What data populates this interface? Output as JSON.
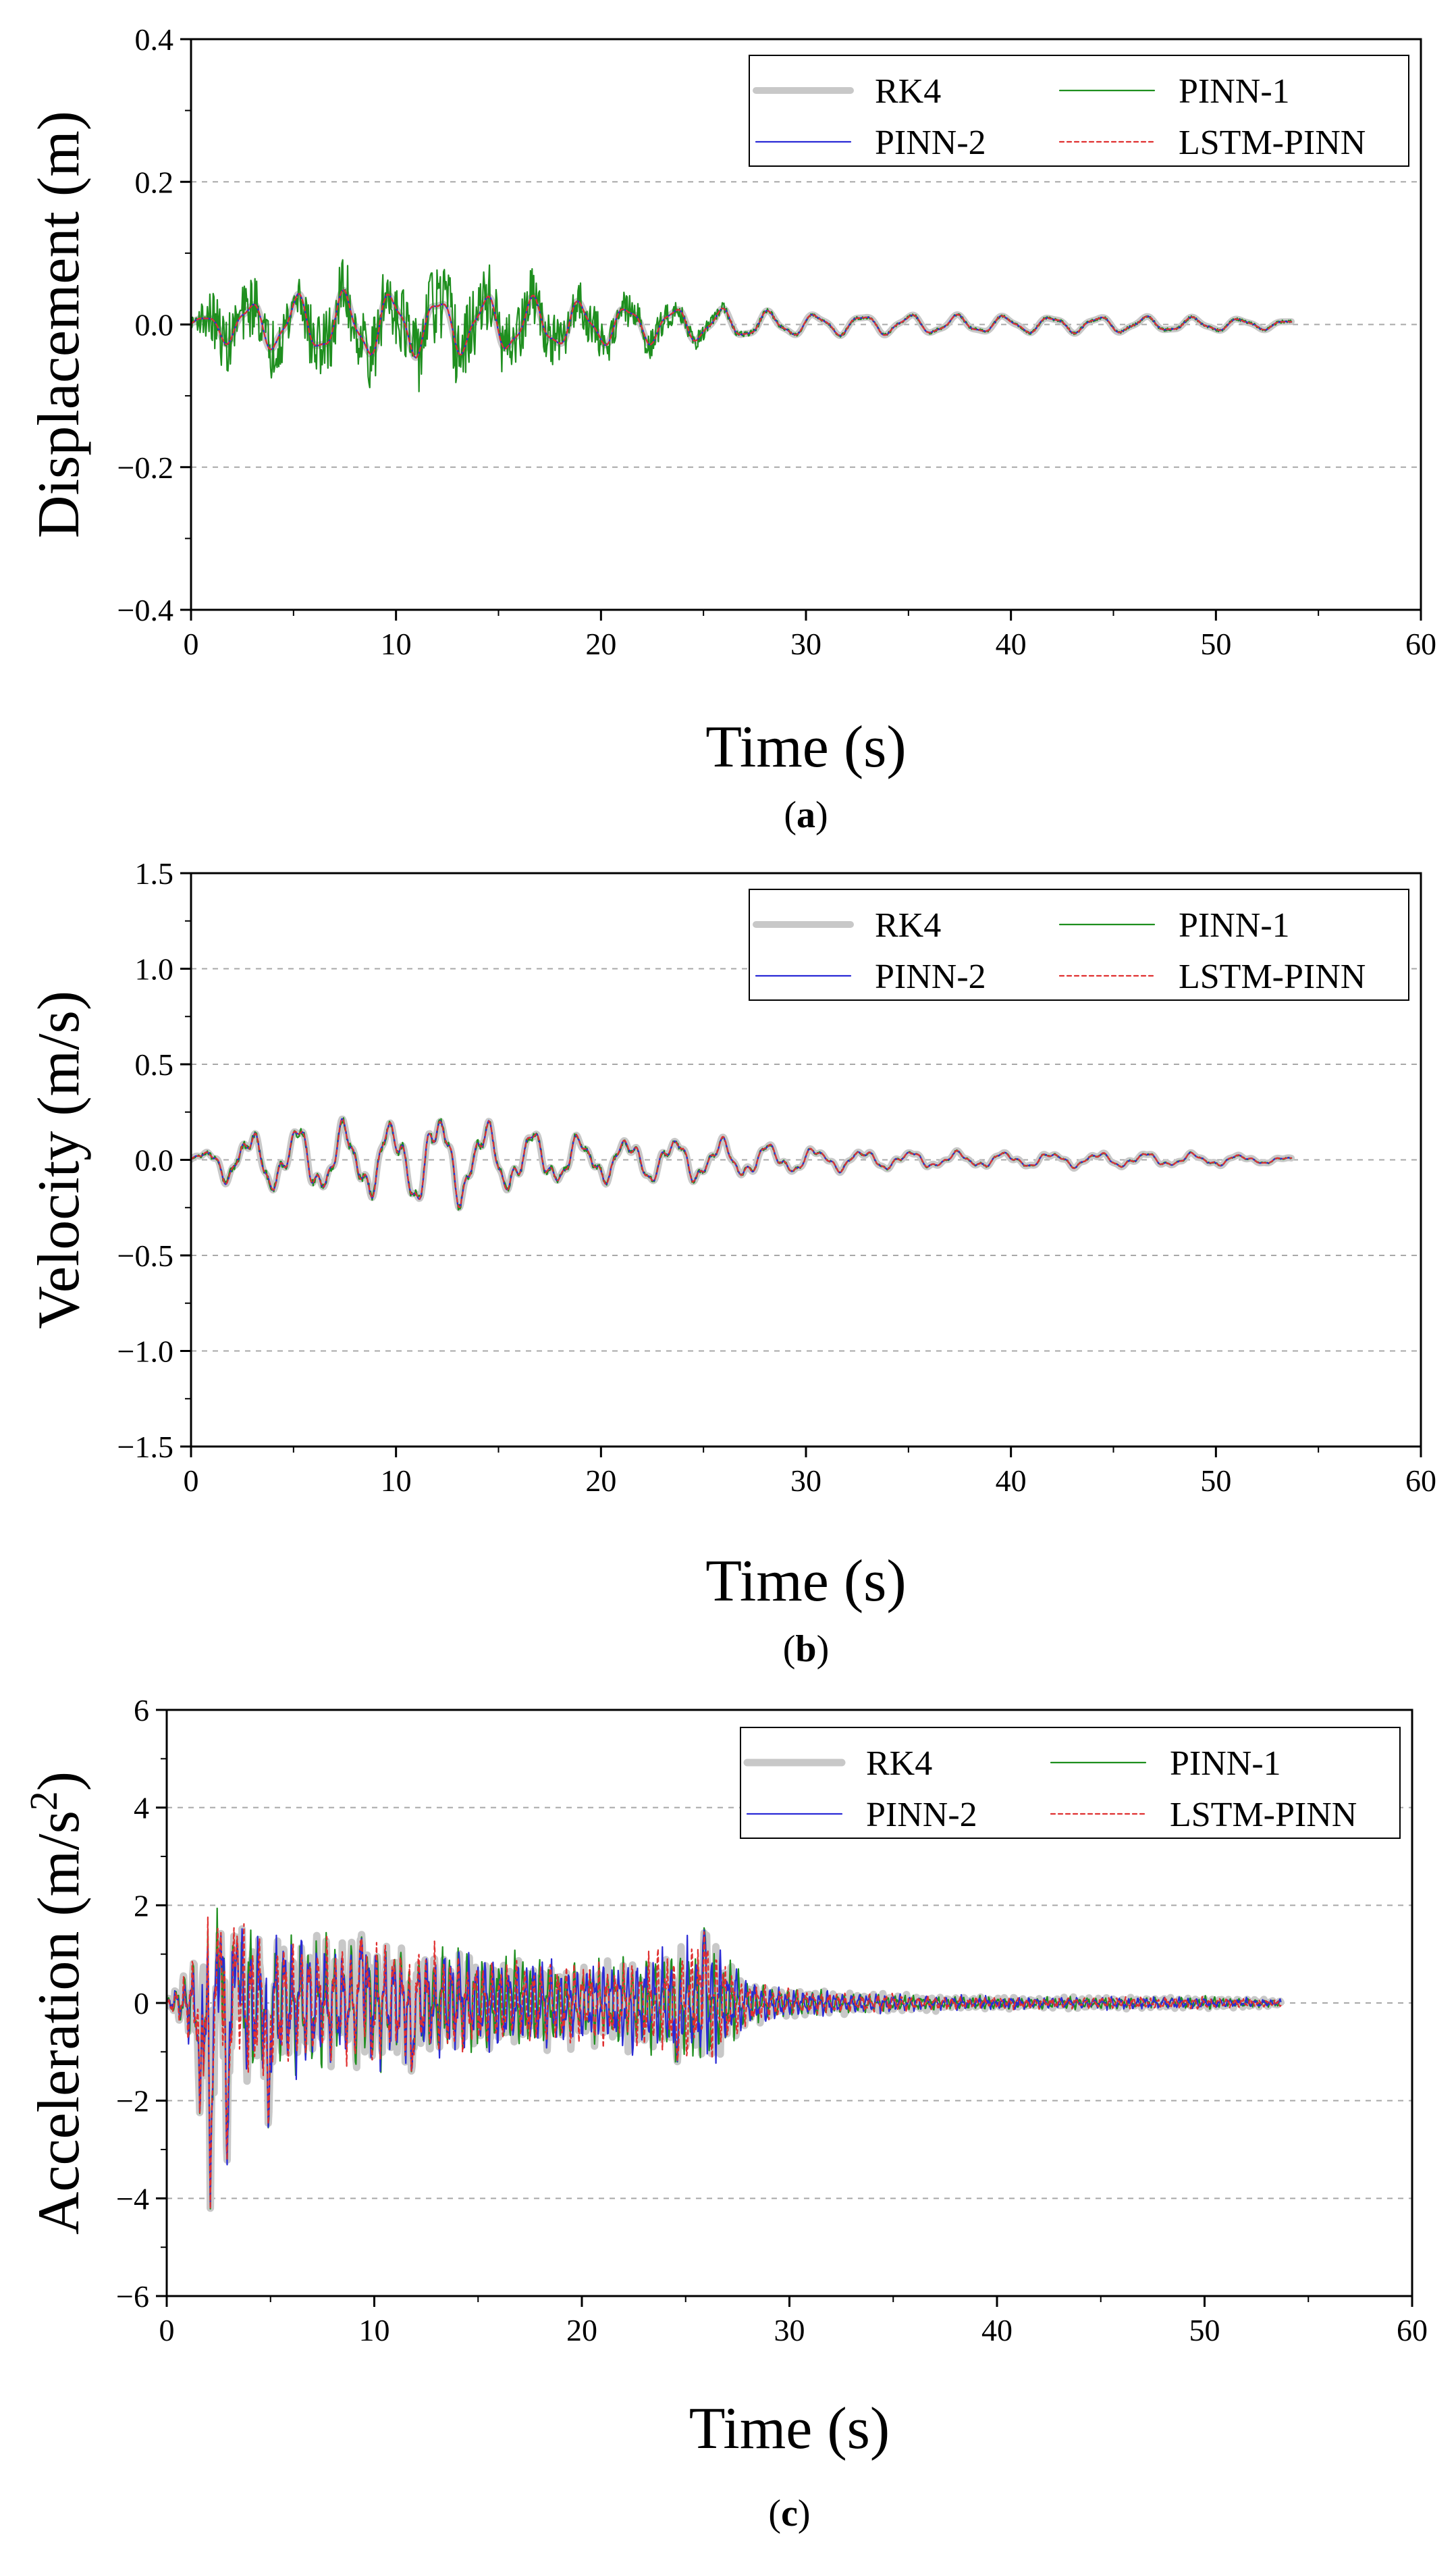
{
  "figure": {
    "panels": [
      {
        "id": "a",
        "label": "a",
        "xlabel": "Time (s)",
        "ylabel": "Displacement (m)",
        "ytick_labels": [
          "−0.4",
          "−0.2",
          "0.0",
          "0.2",
          "0.4"
        ],
        "xtick_labels": [
          "0",
          "10",
          "20",
          "30",
          "40",
          "50",
          "60"
        ]
      },
      {
        "id": "b",
        "label": "b",
        "xlabel": "Time (s)",
        "ylabel": "Velocity (m/s)",
        "ytick_labels": [
          "−1.5",
          "−1.0",
          "−0.5",
          "0.0",
          "0.5",
          "1.0",
          "1.5"
        ],
        "xtick_labels": [
          "0",
          "10",
          "20",
          "30",
          "40",
          "50",
          "60"
        ]
      },
      {
        "id": "c",
        "label": "c",
        "xlabel": "Time (s)",
        "ylabel": "Acceleration (m/s",
        "ylabel_sup": "2",
        "ylabel_end": ")",
        "ytick_labels": [
          "−6",
          "−4",
          "−2",
          "0",
          "2",
          "4",
          "6"
        ],
        "xtick_labels": [
          "0",
          "10",
          "20",
          "30",
          "40",
          "50",
          "60"
        ]
      }
    ],
    "legend": [
      "RK4",
      "PINN-1",
      "PINN-2",
      "LSTM-PINN"
    ],
    "colors": {
      "RK4": "#c8c8c8",
      "PINN-1": "#1f8f1f",
      "PINN-2": "#2a2ad6",
      "LSTM-PINN": "#e03030",
      "grid": "#a8a8a8"
    }
  },
  "chart_data": [
    {
      "type": "line",
      "id": "a",
      "title": "",
      "xlabel": "Time (s)",
      "ylabel": "Displacement (m)",
      "xlim": [
        0,
        60
      ],
      "ylim": [
        -0.4,
        0.4
      ],
      "xticks": [
        0,
        10,
        20,
        30,
        40,
        50,
        60
      ],
      "yticks": [
        -0.4,
        -0.2,
        0.0,
        0.2,
        0.4
      ],
      "grid": "horizontal dashed",
      "legend_position": "top-right",
      "envelope": {
        "t": [
          0,
          2,
          5,
          8,
          10,
          12,
          15,
          18,
          20,
          25,
          30,
          35,
          40,
          45,
          50,
          53.7
        ],
        "amp": [
          0.005,
          0.025,
          0.035,
          0.04,
          0.04,
          0.035,
          0.035,
          0.03,
          0.025,
          0.02,
          0.013,
          0.012,
          0.01,
          0.01,
          0.008,
          0.005
        ]
      },
      "period": 2.3,
      "series": [
        {
          "name": "RK4",
          "t_end": 53.7
        },
        {
          "name": "PINN-1",
          "t_end": 53.7,
          "noise": {
            "t": [
              0,
              1,
              5,
              10,
              12,
              15,
              18,
              20,
              25,
              27,
              30,
              53.7
            ],
            "amp": [
              0.005,
              0.04,
              0.045,
              0.05,
              0.06,
              0.045,
              0.035,
              0.03,
              0.012,
              0.004,
              0.002,
              0.002
            ]
          }
        },
        {
          "name": "PINN-2",
          "t_end": 53.7
        },
        {
          "name": "LSTM-PINN",
          "t_end": 53.7
        }
      ],
      "extremes": {
        "max": 0.1,
        "min": -0.09
      }
    },
    {
      "type": "line",
      "id": "b",
      "title": "",
      "xlabel": "Time (s)",
      "ylabel": "Velocity (m/s)",
      "xlim": [
        0,
        60
      ],
      "ylim": [
        -1.5,
        1.5
      ],
      "xticks": [
        0,
        10,
        20,
        30,
        40,
        50,
        60
      ],
      "yticks": [
        -1.5,
        -1.0,
        -0.5,
        0.0,
        0.5,
        1.0,
        1.5
      ],
      "grid": "horizontal dashed",
      "legend_position": "top-right",
      "envelope": {
        "t": [
          0,
          2,
          5,
          8,
          10,
          12,
          15,
          18,
          20,
          25,
          30,
          35,
          40,
          45,
          50,
          53.7
        ],
        "amp": [
          0.01,
          0.1,
          0.14,
          0.15,
          0.16,
          0.2,
          0.14,
          0.1,
          0.09,
          0.09,
          0.05,
          0.035,
          0.03,
          0.03,
          0.025,
          0.01
        ]
      },
      "period": 2.3,
      "series": [
        {
          "name": "RK4",
          "t_end": 53.7
        },
        {
          "name": "PINN-1",
          "t_end": 53.7,
          "noise": {
            "t": [
              0,
              2,
              10,
              20,
              30,
              53.7
            ],
            "amp": [
              0.005,
              0.02,
              0.02,
              0.015,
              0.005,
              0.003
            ]
          }
        },
        {
          "name": "PINN-2",
          "t_end": 53.7
        },
        {
          "name": "LSTM-PINN",
          "t_end": 53.7
        }
      ],
      "extremes": {
        "max": 0.23,
        "min": -0.15
      }
    },
    {
      "type": "line",
      "id": "c",
      "title": "",
      "xlabel": "Time (s)",
      "ylabel": "Acceleration (m/s²)",
      "xlim": [
        0,
        60
      ],
      "ylim": [
        -6,
        6
      ],
      "xticks": [
        0,
        10,
        20,
        30,
        40,
        50,
        60
      ],
      "yticks": [
        -6,
        -4,
        -2,
        0,
        2,
        4,
        6
      ],
      "grid": "horizontal dashed",
      "legend_position": "top-right",
      "envelope": {
        "t": [
          0,
          1,
          2,
          3,
          5,
          8,
          10,
          12,
          15,
          18,
          20,
          24,
          26,
          28,
          30,
          35,
          40,
          45,
          50,
          53.7
        ],
        "amp": [
          0.05,
          0.6,
          1.6,
          1.6,
          1.3,
          1.1,
          1.2,
          1.0,
          0.9,
          0.8,
          0.7,
          0.9,
          1.2,
          0.4,
          0.25,
          0.15,
          0.1,
          0.1,
          0.1,
          0.05
        ]
      },
      "period": 0.4,
      "spikes": [
        {
          "t": 2.1,
          "v": -4.2
        },
        {
          "t": 2.9,
          "v": -3.6
        },
        {
          "t": 1.6,
          "v": -2.5
        },
        {
          "t": 4.9,
          "v": -2.8
        },
        {
          "t": 2.6,
          "v": 1.6
        },
        {
          "t": 3.4,
          "v": 1.5
        },
        {
          "t": 9.4,
          "v": 1.5
        },
        {
          "t": 25.9,
          "v": 1.6
        },
        {
          "t": 24.6,
          "v": -1.2
        },
        {
          "t": 11.8,
          "v": -1.5
        }
      ],
      "series": [
        {
          "name": "RK4",
          "t_end": 53.7
        },
        {
          "name": "PINN-1",
          "t_end": 53.7
        },
        {
          "name": "PINN-2",
          "t_end": 53.7
        },
        {
          "name": "LSTM-PINN",
          "t_end": 53.7
        }
      ],
      "extremes": {
        "max": 1.6,
        "min": -4.2
      }
    }
  ]
}
